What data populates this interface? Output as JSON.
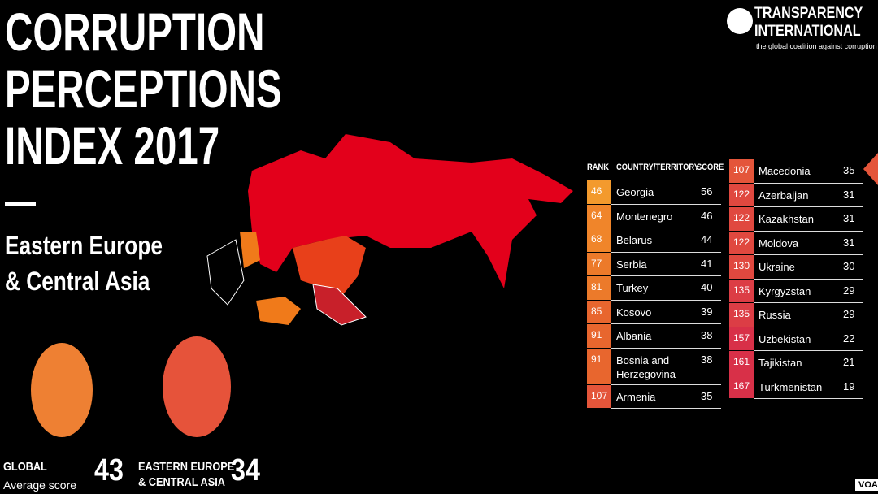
{
  "header": {
    "title_lines": [
      "CORRUPTION",
      "PERCEPTIONS",
      "INDEX 2017"
    ],
    "region_lines": [
      "Eastern Europe",
      "& Central Asia"
    ]
  },
  "logo": {
    "lines": [
      "TRANSPARENCY",
      "INTERNATIONAL"
    ],
    "tagline": "the global coalition against corruption"
  },
  "table": {
    "columns": [
      "RANK",
      "COUNTRY/TERRITORY",
      "SCORE"
    ],
    "left_rows": [
      {
        "rank": 46,
        "country": "Georgia",
        "score": 56,
        "color": "#f39a2d"
      },
      {
        "rank": 64,
        "country": "Montenegro",
        "score": 46,
        "color": "#f0852a"
      },
      {
        "rank": 68,
        "country": "Belarus",
        "score": 44,
        "color": "#f0852a"
      },
      {
        "rank": 77,
        "country": "Serbia",
        "score": 41,
        "color": "#ec7a2a"
      },
      {
        "rank": 81,
        "country": "Turkey",
        "score": 40,
        "color": "#ec7a2a"
      },
      {
        "rank": 85,
        "country": "Kosovo",
        "score": 39,
        "color": "#e8662e"
      },
      {
        "rank": 91,
        "country": "Albania",
        "score": 38,
        "color": "#e8662e"
      },
      {
        "rank": 91,
        "country": "Bosnia and Herzegovina",
        "score": 38,
        "color": "#e8662e"
      },
      {
        "rank": 107,
        "country": "Armenia",
        "score": 35,
        "color": "#e4553a"
      }
    ],
    "right_rows": [
      {
        "rank": 107,
        "country": "Macedonia",
        "score": 35,
        "color": "#e4553a"
      },
      {
        "rank": 122,
        "country": "Azerbaijan",
        "score": 31,
        "color": "#e0483f"
      },
      {
        "rank": 122,
        "country": "Kazakhstan",
        "score": 31,
        "color": "#e0483f"
      },
      {
        "rank": 122,
        "country": "Moldova",
        "score": 31,
        "color": "#e0483f"
      },
      {
        "rank": 130,
        "country": "Ukraine",
        "score": 30,
        "color": "#e0483f"
      },
      {
        "rank": 135,
        "country": "Kyrgyzstan",
        "score": 29,
        "color": "#dc3d45"
      },
      {
        "rank": 135,
        "country": "Russia",
        "score": 29,
        "color": "#dc3d45"
      },
      {
        "rank": 157,
        "country": "Uzbekistan",
        "score": 22,
        "color": "#d83048"
      },
      {
        "rank": 161,
        "country": "Tajikistan",
        "score": 21,
        "color": "#d83048"
      },
      {
        "rank": 167,
        "country": "Turkmenistan",
        "score": 19,
        "color": "#d83048"
      }
    ]
  },
  "summary": {
    "global": {
      "label": "GLOBAL",
      "sublabel": "Average score",
      "value": 43
    },
    "region": {
      "label_lines": [
        "EASTERN EUROPE",
        "& CENTRAL ASIA"
      ],
      "value": 34
    }
  },
  "watermark": "VOA"
}
